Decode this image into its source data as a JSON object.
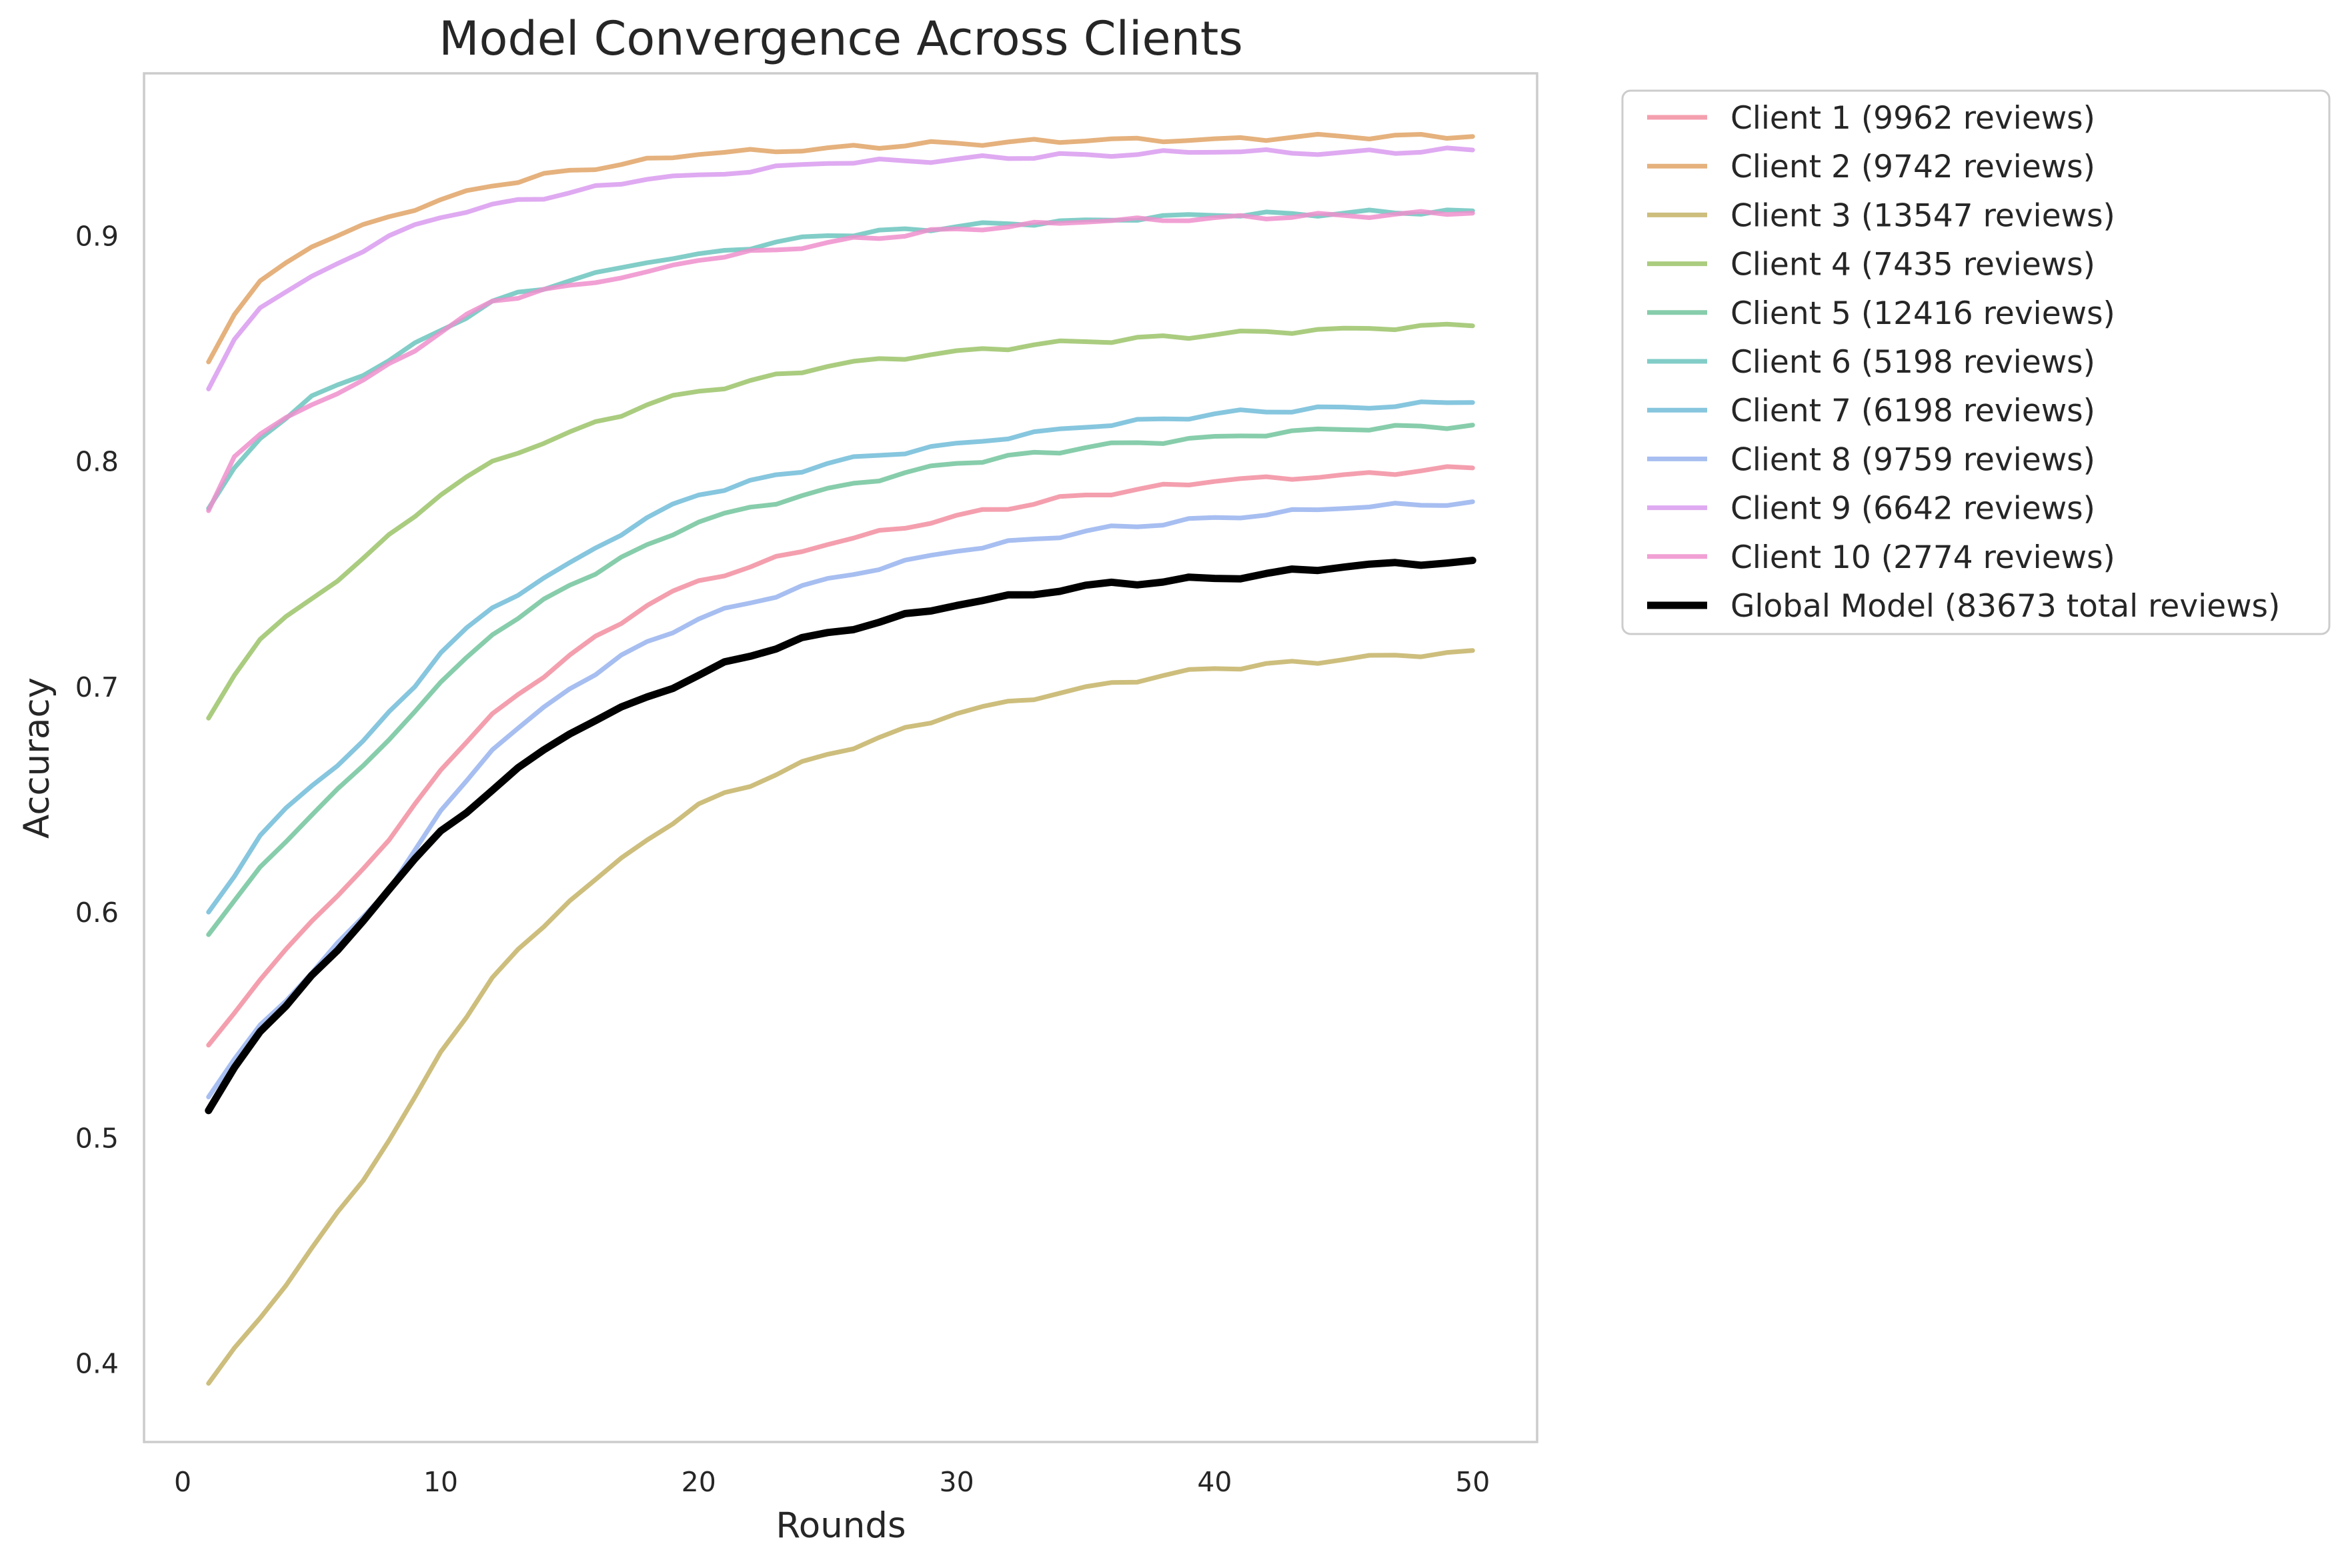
{
  "chart_data": {
    "type": "line",
    "title": "Model Convergence Across Clients",
    "xlabel": "Rounds",
    "ylabel": "Accuracy",
    "xlim": [
      -1.5,
      52.5
    ],
    "ylim": [
      0.365,
      0.972
    ],
    "x_ticks": [
      0,
      10,
      20,
      30,
      40,
      50
    ],
    "x_tick_labels": [
      "0",
      "10",
      "20",
      "30",
      "40",
      "50"
    ],
    "y_ticks": [
      0.4,
      0.5,
      0.6,
      0.7,
      0.8,
      0.9
    ],
    "y_tick_labels": [
      "0.4",
      "0.5",
      "0.6",
      "0.7",
      "0.8",
      "0.9"
    ],
    "grid": false,
    "legend_position": "outside-right",
    "rounds": {
      "start": 1,
      "end": 50
    },
    "series": [
      {
        "name": "Client 1 (9962 reviews)",
        "color": "#f28ea0",
        "points": [
          [
            1,
            0.541
          ],
          [
            3,
            0.57
          ],
          [
            5,
            0.596
          ],
          [
            8,
            0.632
          ],
          [
            10,
            0.663
          ],
          [
            12,
            0.688
          ],
          [
            15,
            0.714
          ],
          [
            18,
            0.736
          ],
          [
            20,
            0.747
          ],
          [
            25,
            0.763
          ],
          [
            30,
            0.776
          ],
          [
            35,
            0.785
          ],
          [
            40,
            0.791
          ],
          [
            45,
            0.794
          ],
          [
            50,
            0.797
          ]
        ]
      },
      {
        "name": "Client 2 (9742 reviews)",
        "color": "#e0a366",
        "points": [
          [
            1,
            0.844
          ],
          [
            2,
            0.865
          ],
          [
            3,
            0.88
          ],
          [
            4,
            0.888
          ],
          [
            5,
            0.895
          ],
          [
            7,
            0.905
          ],
          [
            10,
            0.916
          ],
          [
            12,
            0.922
          ],
          [
            15,
            0.929
          ],
          [
            20,
            0.936
          ],
          [
            25,
            0.939
          ],
          [
            30,
            0.941
          ],
          [
            35,
            0.942
          ],
          [
            40,
            0.943
          ],
          [
            45,
            0.944
          ],
          [
            50,
            0.944
          ]
        ]
      },
      {
        "name": "Client 3 (13547 reviews)",
        "color": "#c4b366",
        "points": [
          [
            1,
            0.391
          ],
          [
            3,
            0.42
          ],
          [
            5,
            0.451
          ],
          [
            7,
            0.481
          ],
          [
            9,
            0.518
          ],
          [
            10,
            0.538
          ],
          [
            12,
            0.571
          ],
          [
            15,
            0.605
          ],
          [
            18,
            0.632
          ],
          [
            20,
            0.648
          ],
          [
            25,
            0.67
          ],
          [
            30,
            0.688
          ],
          [
            35,
            0.7
          ],
          [
            40,
            0.708
          ],
          [
            45,
            0.712
          ],
          [
            50,
            0.716
          ]
        ]
      },
      {
        "name": "Client 4 (7435 reviews)",
        "color": "#9bc368",
        "points": [
          [
            1,
            0.686
          ],
          [
            2,
            0.705
          ],
          [
            3,
            0.721
          ],
          [
            5,
            0.739
          ],
          [
            7,
            0.757
          ],
          [
            10,
            0.785
          ],
          [
            12,
            0.8
          ],
          [
            15,
            0.813
          ],
          [
            18,
            0.825
          ],
          [
            20,
            0.831
          ],
          [
            25,
            0.842
          ],
          [
            30,
            0.849
          ],
          [
            35,
            0.853
          ],
          [
            40,
            0.856
          ],
          [
            45,
            0.859
          ],
          [
            50,
            0.86
          ]
        ]
      },
      {
        "name": "Client 5 (12416 reviews)",
        "color": "#72c49c",
        "points": [
          [
            1,
            0.59
          ],
          [
            3,
            0.62
          ],
          [
            5,
            0.643
          ],
          [
            7,
            0.665
          ],
          [
            10,
            0.702
          ],
          [
            12,
            0.723
          ],
          [
            15,
            0.745
          ],
          [
            18,
            0.763
          ],
          [
            20,
            0.773
          ],
          [
            25,
            0.788
          ],
          [
            30,
            0.799
          ],
          [
            35,
            0.806
          ],
          [
            40,
            0.811
          ],
          [
            45,
            0.814
          ],
          [
            50,
            0.816
          ]
        ]
      },
      {
        "name": "Client 6 (5198 reviews)",
        "color": "#6cc4be",
        "points": [
          [
            1,
            0.779
          ],
          [
            2,
            0.797
          ],
          [
            3,
            0.81
          ],
          [
            5,
            0.829
          ],
          [
            7,
            0.838
          ],
          [
            10,
            0.858
          ],
          [
            12,
            0.871
          ],
          [
            15,
            0.88
          ],
          [
            18,
            0.888
          ],
          [
            20,
            0.892
          ],
          [
            25,
            0.9
          ],
          [
            30,
            0.904
          ],
          [
            35,
            0.907
          ],
          [
            40,
            0.909
          ],
          [
            45,
            0.91
          ],
          [
            50,
            0.911
          ]
        ]
      },
      {
        "name": "Client 7 (6198 reviews)",
        "color": "#71bcd8",
        "points": [
          [
            1,
            0.6
          ],
          [
            3,
            0.634
          ],
          [
            5,
            0.656
          ],
          [
            7,
            0.676
          ],
          [
            9,
            0.7
          ],
          [
            10,
            0.715
          ],
          [
            12,
            0.735
          ],
          [
            15,
            0.755
          ],
          [
            18,
            0.775
          ],
          [
            20,
            0.785
          ],
          [
            25,
            0.799
          ],
          [
            30,
            0.808
          ],
          [
            35,
            0.815
          ],
          [
            40,
            0.821
          ],
          [
            45,
            0.824
          ],
          [
            50,
            0.826
          ]
        ]
      },
      {
        "name": "Client 8 (9759 reviews)",
        "color": "#98b3ef",
        "points": [
          [
            1,
            0.518
          ],
          [
            3,
            0.55
          ],
          [
            5,
            0.573
          ],
          [
            8,
            0.61
          ],
          [
            10,
            0.645
          ],
          [
            12,
            0.672
          ],
          [
            15,
            0.699
          ],
          [
            18,
            0.72
          ],
          [
            20,
            0.73
          ],
          [
            25,
            0.748
          ],
          [
            30,
            0.76
          ],
          [
            35,
            0.769
          ],
          [
            40,
            0.775
          ],
          [
            45,
            0.779
          ],
          [
            50,
            0.782
          ]
        ]
      },
      {
        "name": "Client 9 (6642 reviews)",
        "color": "#d99bef",
        "points": [
          [
            1,
            0.832
          ],
          [
            2,
            0.854
          ],
          [
            3,
            0.868
          ],
          [
            5,
            0.882
          ],
          [
            8,
            0.9
          ],
          [
            10,
            0.908
          ],
          [
            12,
            0.914
          ],
          [
            15,
            0.919
          ],
          [
            18,
            0.925
          ],
          [
            20,
            0.927
          ],
          [
            25,
            0.932
          ],
          [
            30,
            0.934
          ],
          [
            35,
            0.936
          ],
          [
            40,
            0.937
          ],
          [
            45,
            0.937
          ],
          [
            50,
            0.938
          ]
        ]
      },
      {
        "name": "Client 10 (2774 reviews)",
        "color": "#ee8fcd",
        "points": [
          [
            1,
            0.778
          ],
          [
            2,
            0.802
          ],
          [
            3,
            0.812
          ],
          [
            5,
            0.825
          ],
          [
            7,
            0.836
          ],
          [
            10,
            0.857
          ],
          [
            12,
            0.871
          ],
          [
            15,
            0.878
          ],
          [
            18,
            0.884
          ],
          [
            20,
            0.889
          ],
          [
            25,
            0.897
          ],
          [
            30,
            0.903
          ],
          [
            35,
            0.906
          ],
          [
            40,
            0.908
          ],
          [
            45,
            0.909
          ],
          [
            50,
            0.91
          ]
        ]
      },
      {
        "name": "Global Model (83673 total reviews)",
        "color": "#000000",
        "points": [
          [
            1,
            0.512
          ],
          [
            2,
            0.531
          ],
          [
            3,
            0.547
          ],
          [
            5,
            0.572
          ],
          [
            6,
            0.583
          ],
          [
            8,
            0.61
          ],
          [
            10,
            0.636
          ],
          [
            12,
            0.654
          ],
          [
            14,
            0.672
          ],
          [
            15,
            0.679
          ],
          [
            17,
            0.691
          ],
          [
            20,
            0.705
          ],
          [
            21,
            0.711
          ],
          [
            25,
            0.724
          ],
          [
            30,
            0.736
          ],
          [
            35,
            0.745
          ],
          [
            40,
            0.748
          ],
          [
            45,
            0.753
          ],
          [
            50,
            0.756
          ]
        ]
      }
    ]
  }
}
